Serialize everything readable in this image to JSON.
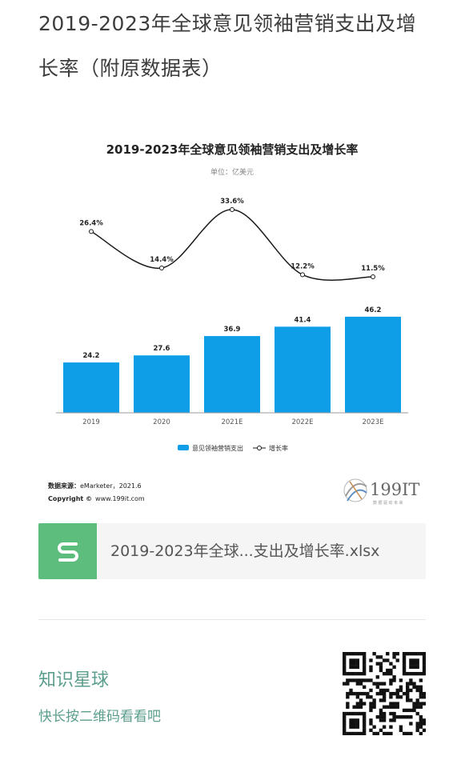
{
  "article": {
    "title_line1": "2019-2023年全球意见领袖营销支出及增",
    "title_line2": "长率（附原数据表）"
  },
  "chart_data": {
    "type": "bar+line",
    "title": "2019-2023年全球意见领袖营销支出及增长率",
    "subtitle": "单位：亿美元",
    "categories": [
      "2019",
      "2020",
      "2021E",
      "2022E",
      "2023E"
    ],
    "series": [
      {
        "name": "意见领袖营销支出",
        "type": "bar",
        "values": [
          24.2,
          27.6,
          36.9,
          41.4,
          46.2
        ],
        "labels": [
          "24.2",
          "27.6",
          "36.9",
          "41.4",
          "46.2"
        ],
        "color": "#0e9ee8"
      },
      {
        "name": "增长率",
        "type": "line",
        "values": [
          26.4,
          14.4,
          33.6,
          12.2,
          11.5
        ],
        "labels": [
          "26.4%",
          "14.4%",
          "33.6%",
          "12.2%",
          "11.5%"
        ],
        "color": "#1a1a1a"
      }
    ],
    "legend": "bottom-center",
    "source_label": "数据来源：",
    "source_value": "eMarketer，2021.6",
    "copyright_label": "Copyright ©",
    "copyright_value": "www.199it.com",
    "logo_text": "199IT",
    "logo_sub": "数据驱动未来"
  },
  "file": {
    "name": "2019-2023年全球...支出及增长率.xlsx",
    "icon": "spreadsheet-s-icon",
    "icon_color": "#5cbd7c"
  },
  "promo": {
    "title": "知识星球",
    "subtitle": "快长按二维码看看吧",
    "qr_icon": "qr-code-icon"
  }
}
